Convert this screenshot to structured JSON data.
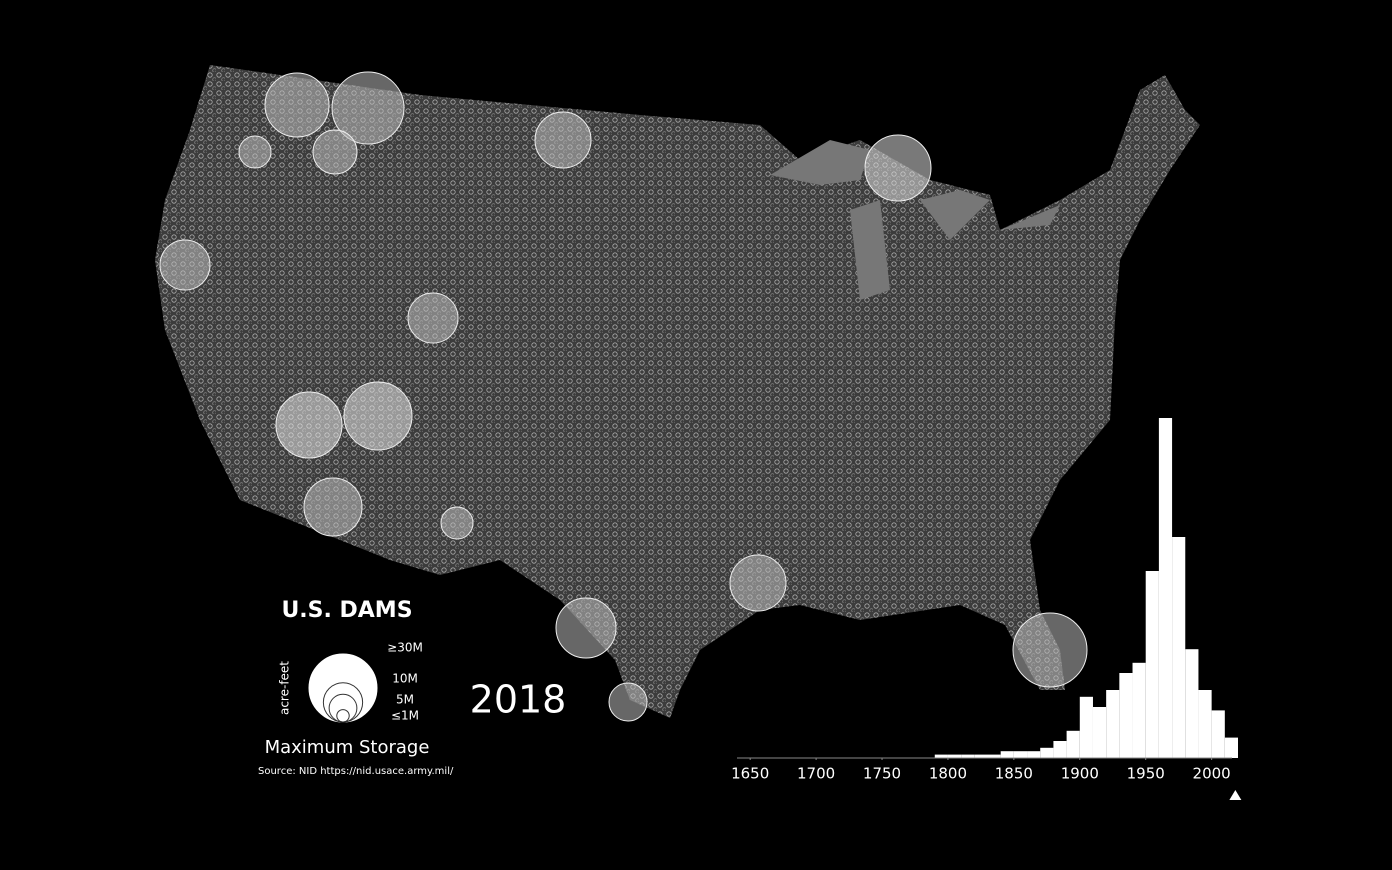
{
  "map": {
    "title": "U.S. DAMS",
    "legend_unit": "acre-feet",
    "legend": [
      {
        "value": 30000000,
        "label": "≥30M"
      },
      {
        "value": 10000000,
        "label": "10M"
      },
      {
        "value": 5000000,
        "label": "5M"
      },
      {
        "value": 1000000,
        "label": "≤1M"
      }
    ],
    "legend_caption": "Maximum Storage",
    "source": "Source: NID https://nid.usace.army.mil/"
  },
  "chart_data": {
    "type": "histogram",
    "marker": 2018,
    "color": "#ffffff",
    "bins": [
      1640,
      1650,
      1660,
      1670,
      1680,
      1690,
      1700,
      1710,
      1720,
      1730,
      1740,
      1750,
      1760,
      1770,
      1780,
      1790,
      1800,
      1810,
      1820,
      1830,
      1840,
      1850,
      1860,
      1870,
      1880,
      1890,
      1900,
      1910,
      1920,
      1930,
      1940,
      1950,
      1960,
      1970,
      1980,
      1990,
      2000,
      2010,
      2020
    ],
    "values": [
      0,
      0,
      0,
      0,
      0,
      0,
      0,
      0,
      0,
      0,
      0,
      0,
      0,
      0,
      0,
      1,
      1,
      1,
      1,
      1,
      2,
      2,
      2,
      3,
      5,
      8,
      18,
      15,
      20,
      25,
      28,
      55,
      100,
      65,
      32,
      20,
      14,
      6
    ],
    "xlim": [
      1640,
      2020
    ],
    "ylim": [
      0,
      100
    ],
    "xticks": [
      1650,
      1700,
      1750,
      1800,
      1850,
      1900,
      1950,
      2000
    ]
  }
}
